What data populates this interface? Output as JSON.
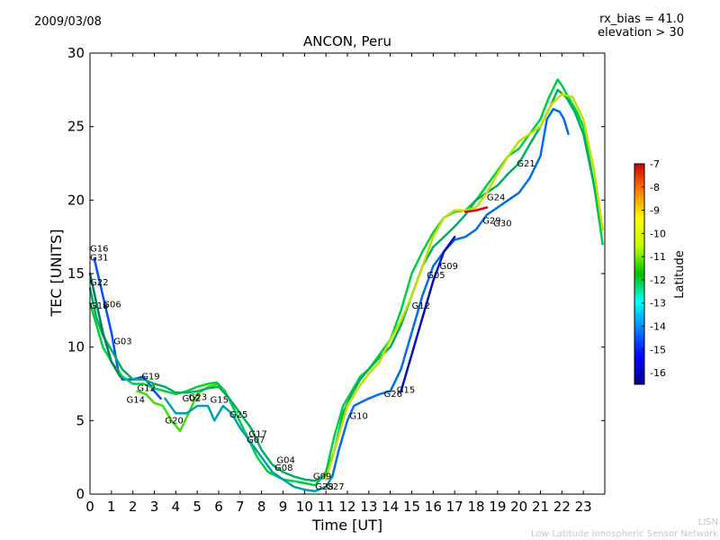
{
  "header": {
    "date": "2009/03/08",
    "rx_bias": "rx_bias = 41.0",
    "elevation": "elevation > 30"
  },
  "footer": {
    "line1": "LISN",
    "line2": "Low-Latitude Ionospheric Sensor Network"
  },
  "colorbar": {
    "label": "Latitude",
    "ticks": [
      "-7",
      "-8",
      "-9",
      "-10",
      "-11",
      "-12",
      "-13",
      "-14",
      "-15",
      "-16"
    ],
    "vmin": -16.5,
    "vmax": -7
  },
  "chart_data": {
    "type": "line",
    "title": "ANCON, Peru",
    "xlabel": "Time [UT]",
    "ylabel": "TEC [UNITS]",
    "xlim": [
      0,
      24
    ],
    "ylim": [
      0,
      30
    ],
    "xticks": [
      0,
      1,
      2,
      3,
      4,
      5,
      6,
      7,
      8,
      9,
      10,
      11,
      12,
      13,
      14,
      15,
      16,
      17,
      18,
      19,
      20,
      21,
      22,
      23
    ],
    "yticks": [
      0,
      5,
      10,
      15,
      20,
      25,
      30
    ],
    "series": [
      {
        "name": "lat-15.5",
        "color": "#0050ff",
        "x": [
          0.2,
          0.6,
          1.0,
          1.3,
          1.5,
          2.0,
          2.5,
          3.0,
          3.3
        ],
        "y": [
          16.0,
          13.5,
          11.0,
          8.5,
          7.8,
          7.8,
          8.0,
          7.0,
          6.5
        ]
      },
      {
        "name": "lat-11",
        "color": "#40e000",
        "x": [
          2.2,
          2.6,
          3.0,
          3.4,
          3.8,
          4.2,
          4.6,
          5.0,
          5.5,
          6.0
        ],
        "y": [
          7.0,
          6.8,
          6.2,
          6.0,
          5.0,
          4.3,
          5.5,
          6.8,
          7.3,
          7.5
        ]
      },
      {
        "name": "lat-11.5",
        "color": "#00d040",
        "x": [
          0.0,
          0.3,
          0.6,
          1.0,
          1.5,
          2.0,
          2.5,
          3.0,
          3.5,
          4.0,
          4.5,
          5.0,
          5.5,
          5.9,
          6.3,
          6.8,
          7.3,
          7.8,
          8.3,
          9.0,
          9.8,
          10.5,
          11.0,
          11.4,
          11.8,
          12.2,
          12.6,
          13.0,
          13.5,
          14.0,
          14.5,
          15.0,
          15.5,
          16.0,
          16.5,
          17.0,
          17.5,
          18.0,
          18.5,
          19.0,
          19.5,
          20.0,
          20.5,
          21.0,
          21.4,
          21.8,
          22.0,
          22.3,
          22.7,
          23.0,
          23.5,
          23.9
        ],
        "y": [
          13.0,
          11.5,
          10.0,
          9.0,
          8.0,
          7.5,
          7.5,
          7.2,
          7.0,
          6.8,
          7.0,
          7.3,
          7.5,
          7.6,
          7.0,
          5.5,
          4.0,
          2.5,
          1.5,
          1.0,
          0.8,
          0.6,
          1.5,
          4.0,
          6.0,
          7.0,
          8.0,
          8.5,
          9.5,
          10.5,
          12.5,
          15.0,
          16.5,
          17.8,
          18.8,
          19.2,
          19.3,
          20.0,
          21.0,
          22.0,
          23.0,
          23.5,
          24.5,
          25.5,
          27.0,
          28.2,
          27.8,
          27.0,
          26.0,
          25.0,
          21.0,
          17.0
        ]
      },
      {
        "name": "lat-12.5",
        "color": "#00b060",
        "x": [
          0.0,
          0.3,
          0.6,
          1.0,
          1.5,
          2.0,
          2.5,
          3.0,
          3.5,
          4.0,
          4.5,
          5.0,
          5.5,
          6.0,
          6.5,
          7.0,
          7.5,
          8.0,
          8.5,
          9.0,
          9.5,
          10.0,
          10.5,
          11.0,
          11.4,
          11.8,
          12.2,
          12.6,
          13.0,
          13.5,
          14.0,
          14.5,
          15.0,
          15.5,
          16.0,
          16.5,
          17.0,
          17.5,
          18.0,
          18.5,
          19.0,
          19.5,
          20.0,
          20.5,
          21.0,
          21.5,
          21.8,
          22.2,
          22.6,
          23.0,
          23.5,
          23.9
        ],
        "y": [
          14.0,
          12.0,
          10.8,
          9.8,
          8.5,
          7.8,
          7.8,
          7.5,
          7.3,
          6.9,
          6.9,
          7.0,
          7.2,
          7.3,
          6.5,
          5.5,
          4.5,
          3.0,
          2.0,
          1.5,
          1.2,
          1.0,
          0.9,
          1.3,
          3.0,
          5.5,
          6.8,
          7.8,
          8.5,
          9.3,
          10.0,
          11.5,
          13.5,
          15.5,
          16.8,
          17.5,
          18.2,
          19.0,
          20.0,
          20.5,
          21.0,
          21.8,
          22.5,
          23.8,
          25.0,
          26.5,
          27.5,
          27.0,
          26.0,
          24.5,
          21.0,
          18.0
        ]
      },
      {
        "name": "lat-14",
        "color": "#00a0b0",
        "x": [
          3.5,
          4.0,
          4.5,
          5.0,
          5.5,
          5.8,
          6.2,
          6.6,
          7.0,
          7.5,
          8.0,
          8.5,
          9.0,
          9.5,
          10.0,
          10.5,
          11.0,
          11.3
        ],
        "y": [
          6.5,
          5.5,
          5.5,
          6.0,
          6.0,
          5.0,
          6.0,
          5.5,
          4.5,
          3.5,
          2.5,
          1.5,
          1.0,
          0.5,
          0.3,
          0.2,
          0.5,
          1.2
        ]
      },
      {
        "name": "lat-14.8",
        "color": "#0070e0",
        "x": [
          11.3,
          11.6,
          12.0,
          12.3,
          12.7,
          13.0,
          13.5,
          14.0,
          14.5,
          15.0,
          15.5,
          16.0,
          16.5,
          17.0,
          17.5,
          18.0,
          18.5,
          19.0,
          19.5,
          20.0,
          20.5,
          21.0,
          21.3,
          21.6,
          21.9,
          22.1,
          22.3
        ],
        "y": [
          1.2,
          3.0,
          5.0,
          6.0,
          6.3,
          6.5,
          6.8,
          7.0,
          8.5,
          11.0,
          13.5,
          15.5,
          16.5,
          17.3,
          17.5,
          18.0,
          19.0,
          19.5,
          20.0,
          20.5,
          21.5,
          23.0,
          25.5,
          26.2,
          26.0,
          25.5,
          24.5
        ]
      },
      {
        "name": "lat-9.8",
        "color": "#c0e000",
        "x": [
          11.0,
          11.5,
          12.0,
          12.5,
          13.0,
          13.5,
          14.0,
          14.5,
          15.0,
          15.5,
          16.0,
          16.5,
          17.0,
          17.5,
          18.0,
          18.5,
          19.0,
          19.5,
          20.0,
          20.5,
          21.0,
          21.5,
          22.0,
          22.5,
          23.0,
          23.5,
          23.9
        ],
        "y": [
          1.0,
          3.5,
          6.0,
          7.2,
          8.2,
          9.0,
          10.5,
          11.8,
          13.5,
          15.5,
          17.5,
          18.8,
          19.3,
          19.3,
          19.5,
          20.5,
          21.8,
          23.0,
          24.0,
          24.5,
          25.0,
          26.5,
          27.2,
          27.0,
          25.5,
          22.0,
          18.0
        ]
      },
      {
        "name": "lat-16.3",
        "color": "#0010c0",
        "x": [
          14.5,
          15.0,
          15.5,
          16.0,
          16.5,
          17.0
        ],
        "y": [
          7.0,
          9.5,
          12.0,
          14.5,
          16.5,
          17.5
        ]
      },
      {
        "name": "lat-7.3",
        "color": "#e00000",
        "x": [
          17.5,
          18.0,
          18.5
        ],
        "y": [
          19.2,
          19.3,
          19.5
        ]
      },
      {
        "name": "lat-13",
        "color": "#008060",
        "x": [
          0.0,
          0.3,
          0.6,
          1.0,
          1.4
        ],
        "y": [
          15.0,
          13.0,
          11.0,
          9.0,
          8.0
        ]
      }
    ],
    "prn_labels": [
      {
        "text": "G16",
        "x": 0.0,
        "y": 16.5
      },
      {
        "text": "G31",
        "x": 0.0,
        "y": 15.9
      },
      {
        "text": "G22",
        "x": 0.0,
        "y": 14.2
      },
      {
        "text": "G18",
        "x": 0.0,
        "y": 12.6
      },
      {
        "text": "G06",
        "x": 0.6,
        "y": 12.7
      },
      {
        "text": "G03",
        "x": 1.1,
        "y": 10.2
      },
      {
        "text": "G19",
        "x": 2.4,
        "y": 7.8
      },
      {
        "text": "G12",
        "x": 2.2,
        "y": 7.0
      },
      {
        "text": "G14",
        "x": 1.7,
        "y": 6.2
      },
      {
        "text": "G20",
        "x": 3.5,
        "y": 4.8
      },
      {
        "text": "G02",
        "x": 4.3,
        "y": 6.3
      },
      {
        "text": "G23",
        "x": 4.6,
        "y": 6.4
      },
      {
        "text": "G15",
        "x": 5.6,
        "y": 6.2
      },
      {
        "text": "G25",
        "x": 6.5,
        "y": 5.2
      },
      {
        "text": "G17",
        "x": 7.4,
        "y": 3.9
      },
      {
        "text": "G07",
        "x": 7.3,
        "y": 3.5
      },
      {
        "text": "G04",
        "x": 8.7,
        "y": 2.1
      },
      {
        "text": "G08",
        "x": 8.6,
        "y": 1.6
      },
      {
        "text": "G09",
        "x": 10.4,
        "y": 1.0
      },
      {
        "text": "G28",
        "x": 10.5,
        "y": 0.3
      },
      {
        "text": "G27",
        "x": 11.0,
        "y": 0.3
      },
      {
        "text": "G10",
        "x": 12.1,
        "y": 5.1
      },
      {
        "text": "G26",
        "x": 13.7,
        "y": 6.6
      },
      {
        "text": "G15",
        "x": 14.3,
        "y": 6.9
      },
      {
        "text": "G12",
        "x": 15.0,
        "y": 12.6
      },
      {
        "text": "G05",
        "x": 15.7,
        "y": 14.7
      },
      {
        "text": "G09",
        "x": 16.3,
        "y": 15.3
      },
      {
        "text": "G24",
        "x": 18.5,
        "y": 20.0
      },
      {
        "text": "G29",
        "x": 18.3,
        "y": 18.4
      },
      {
        "text": "G30",
        "x": 18.8,
        "y": 18.2
      },
      {
        "text": "G21",
        "x": 19.9,
        "y": 22.3
      }
    ]
  }
}
